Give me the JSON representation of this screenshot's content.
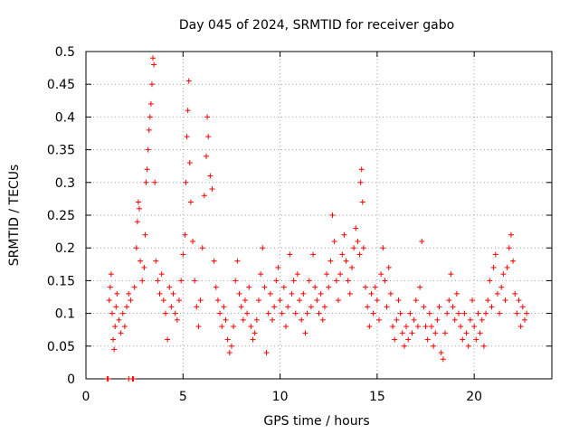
{
  "chart_data": {
    "type": "scatter",
    "title": "Day 045 of 2024, SRMTID for receiver gabo",
    "xlabel": "GPS time / hours",
    "ylabel": "SRMTID / TECUs",
    "xlim": [
      0,
      24
    ],
    "ylim": [
      0,
      0.5
    ],
    "xticks": [
      0,
      5,
      10,
      15,
      20
    ],
    "xtick_labels": [
      "0",
      "5",
      "10",
      "15",
      "20"
    ],
    "yticks": [
      0,
      0.05,
      0.1,
      0.15,
      0.2,
      0.25,
      0.3,
      0.35,
      0.4,
      0.45,
      0.5
    ],
    "ytick_labels": [
      "0",
      "0.05",
      "0.1",
      "0.15",
      "0.2",
      "0.25",
      "0.3",
      "0.35",
      "0.4",
      "0.45",
      "0.5"
    ],
    "grid": true,
    "marker": "+",
    "color": "#ff0000",
    "series": [
      {
        "name": "SRMTID",
        "points": [
          [
            1.1,
            0.0
          ],
          [
            1.15,
            0.0
          ],
          [
            2.2,
            0.0
          ],
          [
            2.4,
            0.0
          ],
          [
            2.45,
            0.0
          ],
          [
            1.2,
            0.12
          ],
          [
            1.25,
            0.14
          ],
          [
            1.3,
            0.16
          ],
          [
            1.35,
            0.1
          ],
          [
            1.4,
            0.06
          ],
          [
            1.45,
            0.045
          ],
          [
            1.5,
            0.08
          ],
          [
            1.55,
            0.11
          ],
          [
            1.6,
            0.13
          ],
          [
            1.7,
            0.09
          ],
          [
            1.8,
            0.07
          ],
          [
            1.9,
            0.1
          ],
          [
            2.0,
            0.08
          ],
          [
            2.1,
            0.11
          ],
          [
            2.2,
            0.13
          ],
          [
            2.3,
            0.12
          ],
          [
            2.5,
            0.14
          ],
          [
            2.6,
            0.2
          ],
          [
            2.65,
            0.24
          ],
          [
            2.7,
            0.27
          ],
          [
            2.75,
            0.26
          ],
          [
            2.8,
            0.18
          ],
          [
            2.9,
            0.15
          ],
          [
            3.0,
            0.17
          ],
          [
            3.05,
            0.22
          ],
          [
            3.1,
            0.3
          ],
          [
            3.15,
            0.32
          ],
          [
            3.2,
            0.35
          ],
          [
            3.25,
            0.38
          ],
          [
            3.3,
            0.4
          ],
          [
            3.35,
            0.42
          ],
          [
            3.4,
            0.45
          ],
          [
            3.45,
            0.49
          ],
          [
            3.5,
            0.48
          ],
          [
            3.55,
            0.3
          ],
          [
            3.6,
            0.18
          ],
          [
            3.7,
            0.15
          ],
          [
            3.8,
            0.13
          ],
          [
            3.9,
            0.16
          ],
          [
            4.0,
            0.12
          ],
          [
            4.1,
            0.1
          ],
          [
            4.2,
            0.06
          ],
          [
            4.3,
            0.14
          ],
          [
            4.4,
            0.11
          ],
          [
            4.5,
            0.13
          ],
          [
            4.6,
            0.1
          ],
          [
            4.7,
            0.09
          ],
          [
            4.8,
            0.12
          ],
          [
            4.9,
            0.15
          ],
          [
            5.0,
            0.19
          ],
          [
            5.1,
            0.22
          ],
          [
            5.15,
            0.3
          ],
          [
            5.2,
            0.37
          ],
          [
            5.25,
            0.41
          ],
          [
            5.3,
            0.455
          ],
          [
            5.35,
            0.33
          ],
          [
            5.4,
            0.27
          ],
          [
            5.5,
            0.21
          ],
          [
            5.6,
            0.15
          ],
          [
            5.7,
            0.11
          ],
          [
            5.8,
            0.08
          ],
          [
            5.9,
            0.12
          ],
          [
            6.0,
            0.2
          ],
          [
            6.1,
            0.28
          ],
          [
            6.2,
            0.34
          ],
          [
            6.25,
            0.4
          ],
          [
            6.3,
            0.37
          ],
          [
            6.4,
            0.31
          ],
          [
            6.5,
            0.29
          ],
          [
            6.6,
            0.18
          ],
          [
            6.7,
            0.14
          ],
          [
            6.8,
            0.12
          ],
          [
            6.9,
            0.1
          ],
          [
            7.0,
            0.08
          ],
          [
            7.1,
            0.11
          ],
          [
            7.2,
            0.09
          ],
          [
            7.3,
            0.06
          ],
          [
            7.4,
            0.04
          ],
          [
            7.5,
            0.05
          ],
          [
            7.6,
            0.08
          ],
          [
            7.7,
            0.15
          ],
          [
            7.8,
            0.18
          ],
          [
            7.9,
            0.13
          ],
          [
            8.0,
            0.11
          ],
          [
            8.1,
            0.09
          ],
          [
            8.2,
            0.12
          ],
          [
            8.3,
            0.1
          ],
          [
            8.4,
            0.14
          ],
          [
            8.5,
            0.08
          ],
          [
            8.6,
            0.06
          ],
          [
            8.7,
            0.07
          ],
          [
            8.8,
            0.09
          ],
          [
            8.9,
            0.12
          ],
          [
            9.0,
            0.16
          ],
          [
            9.1,
            0.2
          ],
          [
            9.2,
            0.14
          ],
          [
            9.3,
            0.04
          ],
          [
            9.4,
            0.1
          ],
          [
            9.5,
            0.13
          ],
          [
            9.6,
            0.09
          ],
          [
            9.7,
            0.11
          ],
          [
            9.8,
            0.15
          ],
          [
            9.9,
            0.17
          ],
          [
            10.0,
            0.12
          ],
          [
            10.1,
            0.1
          ],
          [
            10.2,
            0.14
          ],
          [
            10.3,
            0.08
          ],
          [
            10.4,
            0.11
          ],
          [
            10.5,
            0.19
          ],
          [
            10.6,
            0.13
          ],
          [
            10.7,
            0.15
          ],
          [
            10.8,
            0.1
          ],
          [
            10.9,
            0.16
          ],
          [
            11.0,
            0.12
          ],
          [
            11.1,
            0.09
          ],
          [
            11.2,
            0.13
          ],
          [
            11.3,
            0.07
          ],
          [
            11.4,
            0.1
          ],
          [
            11.5,
            0.15
          ],
          [
            11.6,
            0.11
          ],
          [
            11.7,
            0.19
          ],
          [
            11.8,
            0.14
          ],
          [
            11.9,
            0.12
          ],
          [
            12.0,
            0.1
          ],
          [
            12.1,
            0.13
          ],
          [
            12.2,
            0.09
          ],
          [
            12.3,
            0.11
          ],
          [
            12.4,
            0.16
          ],
          [
            12.5,
            0.14
          ],
          [
            12.6,
            0.18
          ],
          [
            12.7,
            0.25
          ],
          [
            12.8,
            0.21
          ],
          [
            12.9,
            0.15
          ],
          [
            13.0,
            0.12
          ],
          [
            13.1,
            0.16
          ],
          [
            13.2,
            0.19
          ],
          [
            13.3,
            0.22
          ],
          [
            13.4,
            0.18
          ],
          [
            13.5,
            0.15
          ],
          [
            13.6,
            0.13
          ],
          [
            13.7,
            0.17
          ],
          [
            13.8,
            0.2
          ],
          [
            13.9,
            0.23
          ],
          [
            14.0,
            0.21
          ],
          [
            14.1,
            0.19
          ],
          [
            14.15,
            0.3
          ],
          [
            14.2,
            0.32
          ],
          [
            14.25,
            0.27
          ],
          [
            14.3,
            0.2
          ],
          [
            14.4,
            0.14
          ],
          [
            14.5,
            0.11
          ],
          [
            14.6,
            0.08
          ],
          [
            14.7,
            0.13
          ],
          [
            14.8,
            0.1
          ],
          [
            14.9,
            0.14
          ],
          [
            15.0,
            0.12
          ],
          [
            15.1,
            0.09
          ],
          [
            15.2,
            0.16
          ],
          [
            15.3,
            0.2
          ],
          [
            15.4,
            0.15
          ],
          [
            15.5,
            0.11
          ],
          [
            15.6,
            0.17
          ],
          [
            15.7,
            0.13
          ],
          [
            15.8,
            0.08
          ],
          [
            15.9,
            0.06
          ],
          [
            16.0,
            0.09
          ],
          [
            16.1,
            0.12
          ],
          [
            16.2,
            0.1
          ],
          [
            16.3,
            0.07
          ],
          [
            16.4,
            0.05
          ],
          [
            16.5,
            0.08
          ],
          [
            16.6,
            0.06
          ],
          [
            16.7,
            0.1
          ],
          [
            16.8,
            0.07
          ],
          [
            16.9,
            0.09
          ],
          [
            17.0,
            0.12
          ],
          [
            17.1,
            0.08
          ],
          [
            17.2,
            0.14
          ],
          [
            17.3,
            0.21
          ],
          [
            17.4,
            0.11
          ],
          [
            17.5,
            0.08
          ],
          [
            17.6,
            0.06
          ],
          [
            17.7,
            0.1
          ],
          [
            17.8,
            0.08
          ],
          [
            17.9,
            0.05
          ],
          [
            18.0,
            0.07
          ],
          [
            18.1,
            0.09
          ],
          [
            18.2,
            0.11
          ],
          [
            18.3,
            0.04
          ],
          [
            18.4,
            0.03
          ],
          [
            18.5,
            0.07
          ],
          [
            18.6,
            0.1
          ],
          [
            18.7,
            0.12
          ],
          [
            18.8,
            0.16
          ],
          [
            18.9,
            0.11
          ],
          [
            19.0,
            0.09
          ],
          [
            19.1,
            0.13
          ],
          [
            19.2,
            0.1
          ],
          [
            19.3,
            0.08
          ],
          [
            19.4,
            0.06
          ],
          [
            19.5,
            0.1
          ],
          [
            19.6,
            0.07
          ],
          [
            19.7,
            0.05
          ],
          [
            19.8,
            0.09
          ],
          [
            19.9,
            0.12
          ],
          [
            20.0,
            0.08
          ],
          [
            20.1,
            0.06
          ],
          [
            20.2,
            0.1
          ],
          [
            20.3,
            0.07
          ],
          [
            20.4,
            0.09
          ],
          [
            20.5,
            0.05
          ],
          [
            20.6,
            0.1
          ],
          [
            20.7,
            0.12
          ],
          [
            20.8,
            0.15
          ],
          [
            20.9,
            0.11
          ],
          [
            21.0,
            0.17
          ],
          [
            21.1,
            0.19
          ],
          [
            21.2,
            0.13
          ],
          [
            21.3,
            0.1
          ],
          [
            21.4,
            0.14
          ],
          [
            21.5,
            0.16
          ],
          [
            21.6,
            0.12
          ],
          [
            21.7,
            0.17
          ],
          [
            21.8,
            0.2
          ],
          [
            21.9,
            0.22
          ],
          [
            22.0,
            0.18
          ],
          [
            22.1,
            0.13
          ],
          [
            22.2,
            0.1
          ],
          [
            22.3,
            0.12
          ],
          [
            22.4,
            0.08
          ],
          [
            22.5,
            0.11
          ],
          [
            22.6,
            0.09
          ],
          [
            22.7,
            0.1
          ]
        ]
      }
    ]
  }
}
